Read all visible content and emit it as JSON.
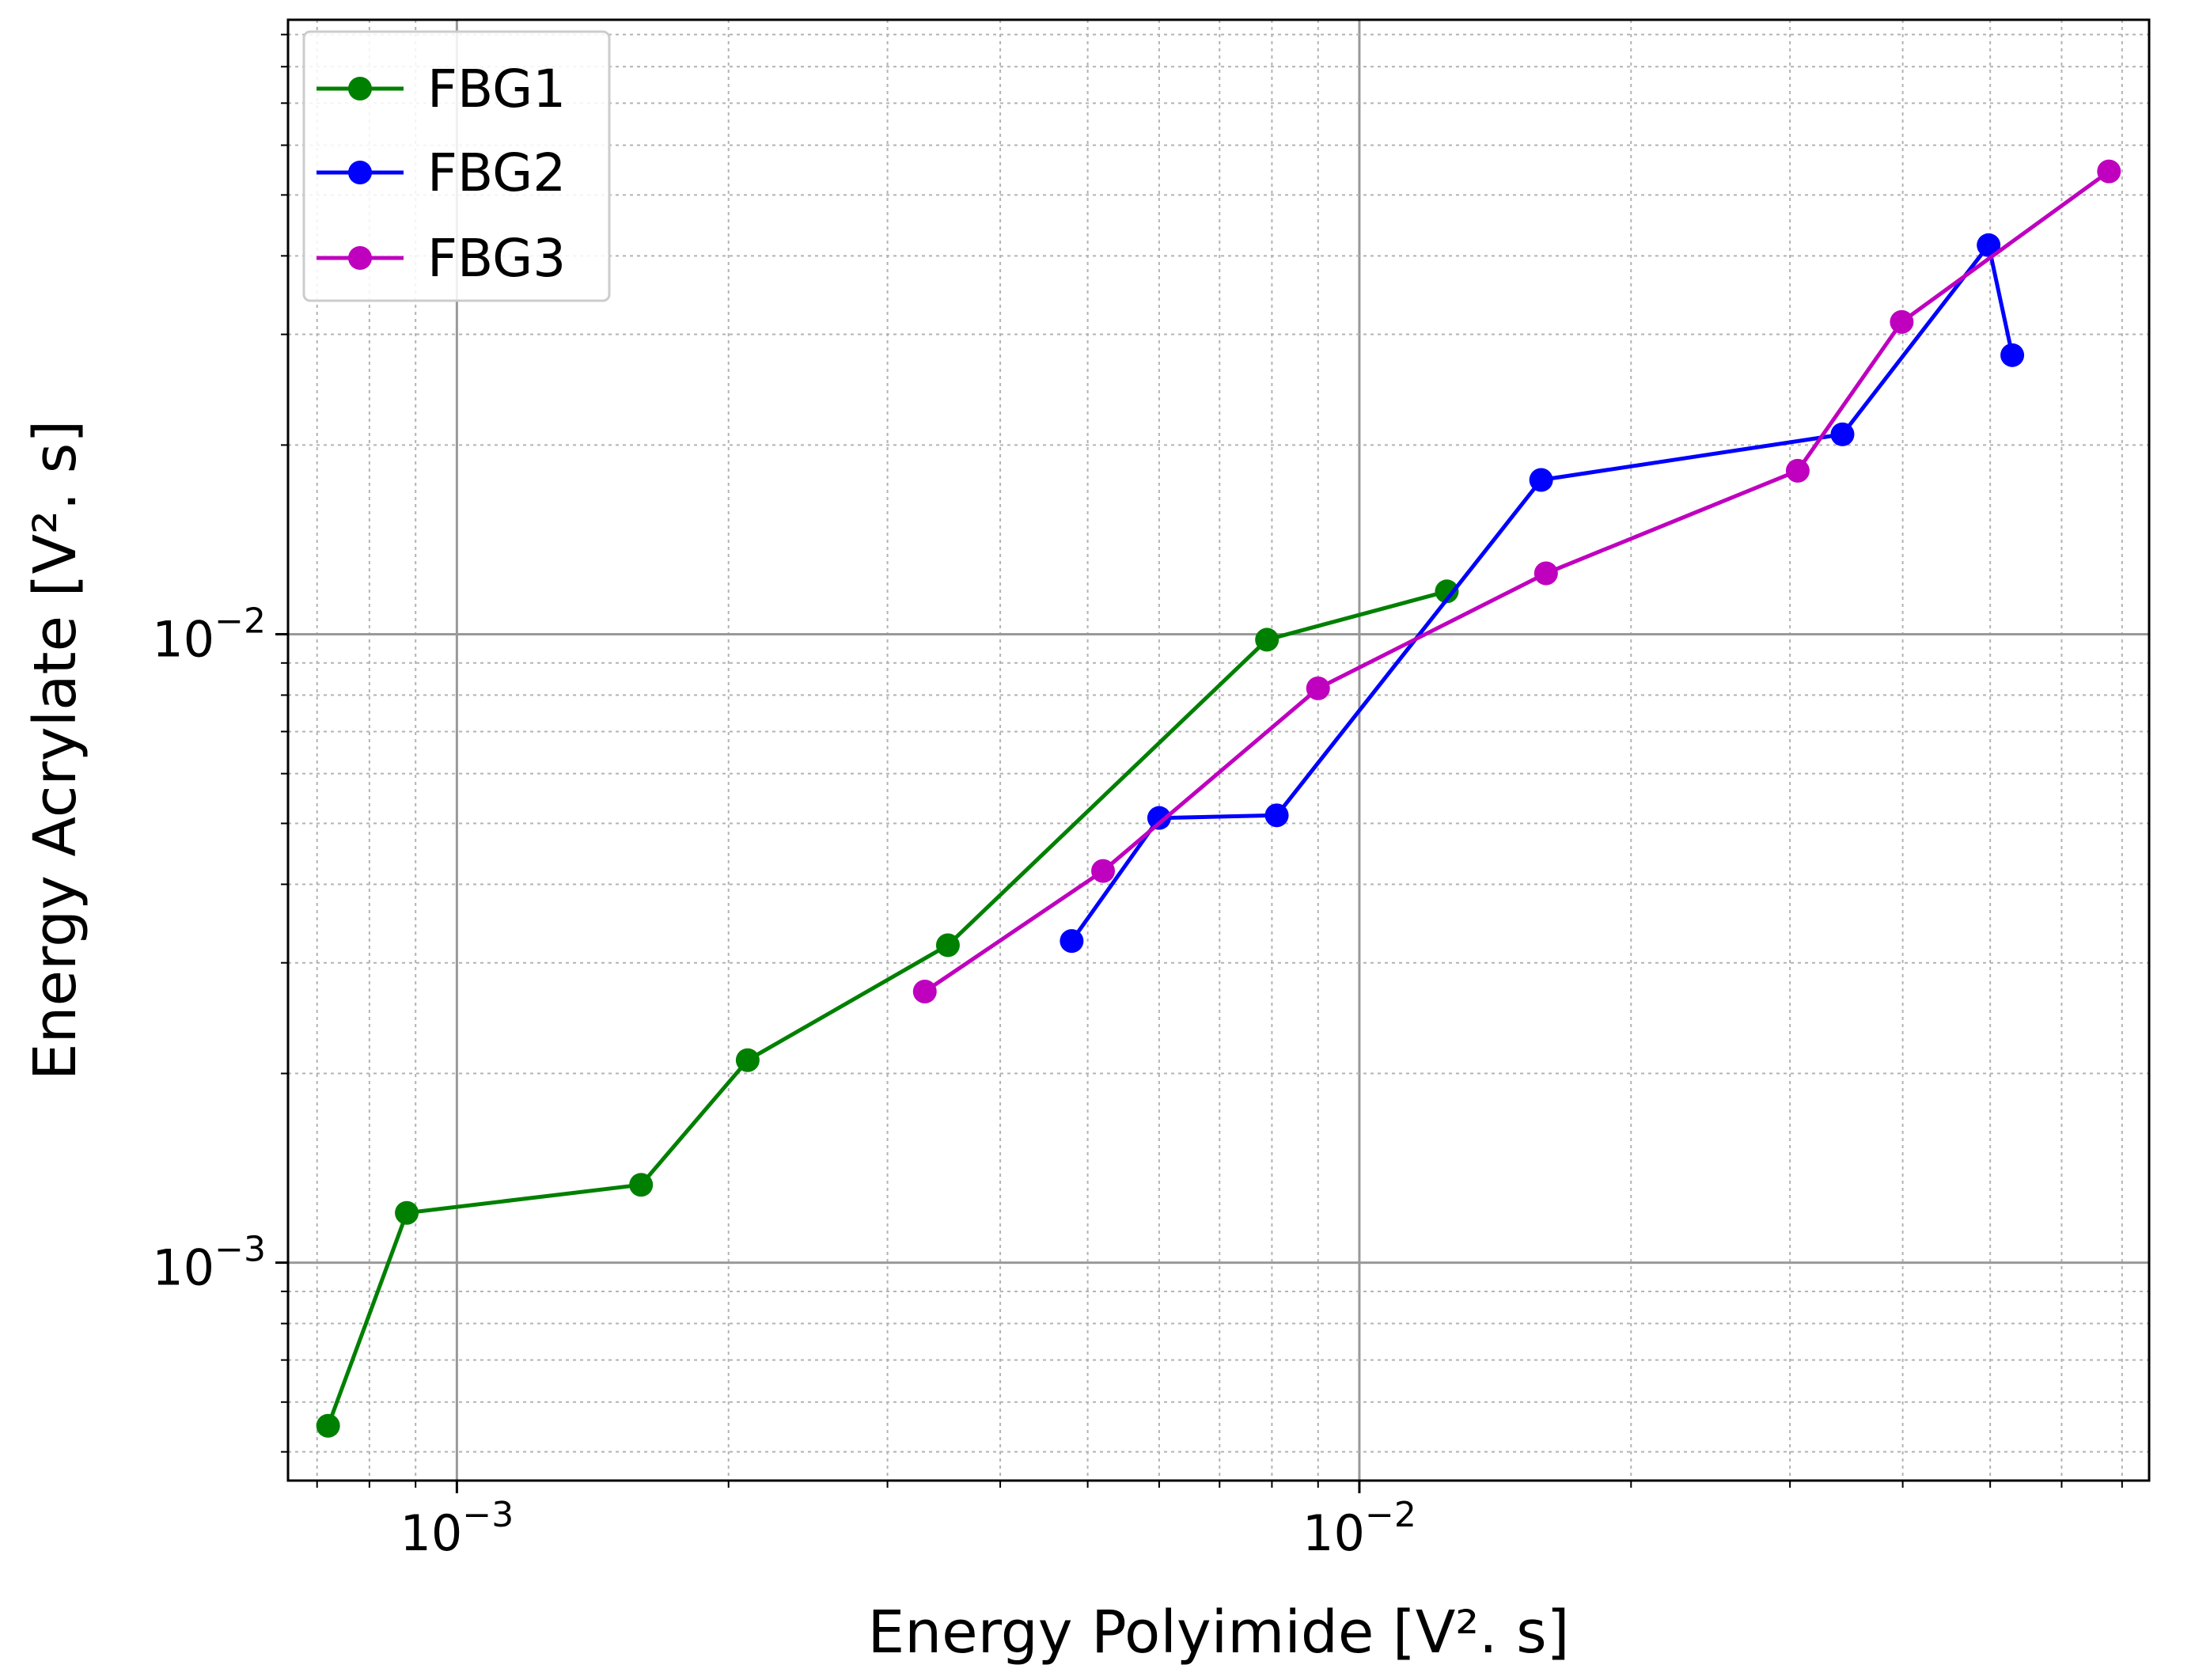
{
  "chart_data": {
    "type": "line",
    "title": "",
    "xlabel": "Energy Polyimide [V². s]",
    "ylabel": "Energy Acrylate [V². s]",
    "xscale": "log",
    "yscale": "log",
    "xlim": [
      0.00065,
      0.075
    ],
    "ylim": [
      0.00045,
      0.095
    ],
    "x_major_ticks": [
      {
        "value": 0.001,
        "base": "10",
        "exp": "−3"
      },
      {
        "value": 0.01,
        "base": "10",
        "exp": "−2"
      }
    ],
    "y_major_ticks": [
      {
        "value": 0.001,
        "base": "10",
        "exp": "−3"
      },
      {
        "value": 0.01,
        "base": "10",
        "exp": "−2"
      }
    ],
    "grid": "major solid, minor dotted",
    "legend": {
      "position": "top-left"
    },
    "series": [
      {
        "name": "FBG1",
        "color": "#008000",
        "x": [
          0.00072,
          0.00088,
          0.0016,
          0.0021,
          0.0035,
          0.0079,
          0.0125
        ],
        "y": [
          0.00055,
          0.0012,
          0.00133,
          0.0021,
          0.0032,
          0.0098,
          0.0117
        ]
      },
      {
        "name": "FBG2",
        "color": "#0000ff",
        "x": [
          0.0048,
          0.006,
          0.0081,
          0.0159,
          0.0343,
          0.0498,
          0.0529
        ],
        "y": [
          0.00325,
          0.0051,
          0.00515,
          0.0176,
          0.0208,
          0.0416,
          0.0278
        ]
      },
      {
        "name": "FBG3",
        "color": "#bf00bf",
        "x": [
          0.0033,
          0.0052,
          0.009,
          0.0161,
          0.0306,
          0.0399,
          0.0677
        ],
        "y": [
          0.0027,
          0.0042,
          0.0082,
          0.0125,
          0.0182,
          0.0314,
          0.0545
        ]
      }
    ]
  }
}
